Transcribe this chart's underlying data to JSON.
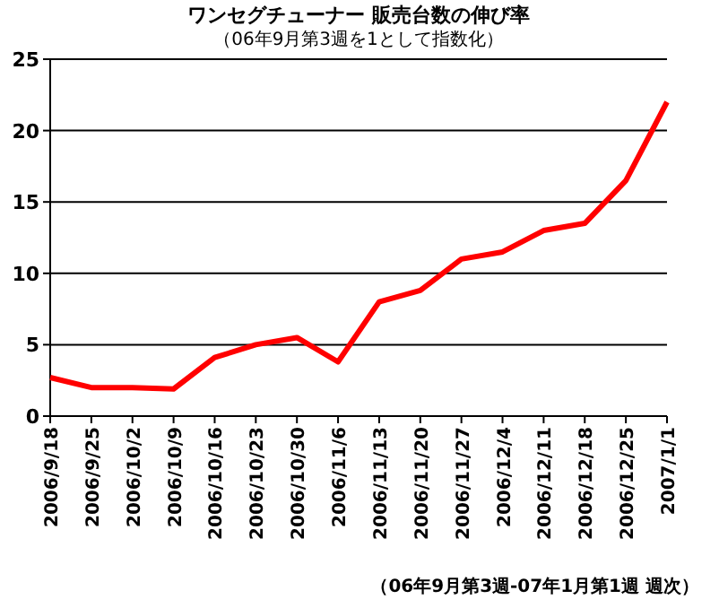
{
  "chart_data": {
    "type": "line",
    "title": "ワンセグチューナー 販売台数の伸び率",
    "subtitle": "（06年9月第3週を1として指数化）",
    "categories": [
      "2006/9/18",
      "2006/9/25",
      "2006/10/2",
      "2006/10/9",
      "2006/10/16",
      "2006/10/23",
      "2006/10/30",
      "2006/11/6",
      "2006/11/13",
      "2006/11/20",
      "2006/11/27",
      "2006/12/4",
      "2006/12/11",
      "2006/12/18",
      "2006/12/25",
      "2007/1/1"
    ],
    "series": [
      {
        "color": "#ff0000",
        "values": [
          2.7,
          2.0,
          2.0,
          1.9,
          4.1,
          5.0,
          5.5,
          3.8,
          8.0,
          8.8,
          11.0,
          11.5,
          13.0,
          13.5,
          16.5,
          22.0
        ]
      }
    ],
    "ylim": [
      0,
      25
    ],
    "yticks": [
      0,
      5,
      10,
      15,
      20,
      25
    ],
    "grid": "y",
    "marker": "none",
    "line_style": "solid",
    "annotations": [
      "（06年9月第3週-07年1月第1週 週次）"
    ]
  }
}
